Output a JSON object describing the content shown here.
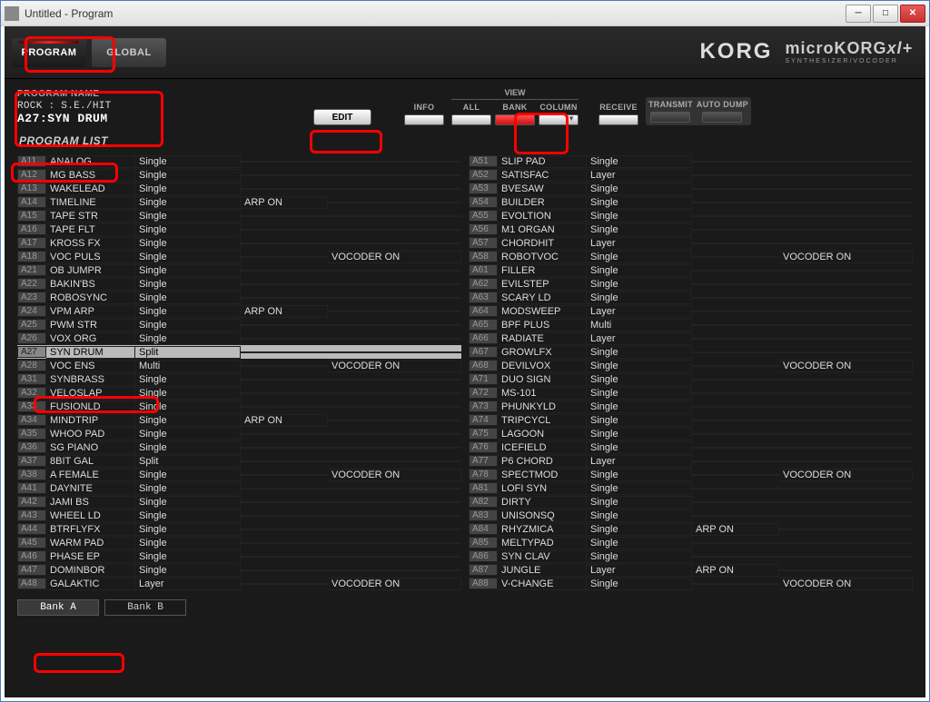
{
  "window": {
    "title": "Untitled - Program"
  },
  "modes": {
    "program": "PROGRAM",
    "global": "GLOBAL"
  },
  "brand": {
    "korg": "KORG",
    "mk": "microKORG",
    "xl": "xl+",
    "sub": "SYNTHESIZER/VOCODER"
  },
  "programName": {
    "label": "PROGRAM NAME",
    "category": "ROCK : S.E./HIT",
    "name": "A27:SYN DRUM"
  },
  "buttons": {
    "edit": "EDIT",
    "info": "INFO",
    "all": "ALL",
    "bank": "BANK",
    "column": "COLUMN",
    "receive": "RECEIVE",
    "transmit": "TRANSMIT",
    "autodump": "AUTO DUMP",
    "viewLabel": "VIEW"
  },
  "listTitle": "PROGRAM LIST",
  "bankTabs": {
    "a": "Bank A",
    "b": "Bank B"
  },
  "selectedId": "A27",
  "colLeft": [
    {
      "id": "A11",
      "name": "ANALOG",
      "type": "Single",
      "arp": "",
      "voc": ""
    },
    {
      "id": "A12",
      "name": "MG BASS",
      "type": "Single",
      "arp": "",
      "voc": ""
    },
    {
      "id": "A13",
      "name": "WAKELEAD",
      "type": "Single",
      "arp": "",
      "voc": ""
    },
    {
      "id": "A14",
      "name": "TIMELINE",
      "type": "Single",
      "arp": "ARP ON",
      "voc": ""
    },
    {
      "id": "A15",
      "name": "TAPE STR",
      "type": "Single",
      "arp": "",
      "voc": ""
    },
    {
      "id": "A16",
      "name": "TAPE FLT",
      "type": "Single",
      "arp": "",
      "voc": ""
    },
    {
      "id": "A17",
      "name": "KROSS FX",
      "type": "Single",
      "arp": "",
      "voc": ""
    },
    {
      "id": "A18",
      "name": "VOC PULS",
      "type": "Single",
      "arp": "",
      "voc": "VOCODER ON"
    },
    {
      "id": "A21",
      "name": "OB JUMPR",
      "type": "Single",
      "arp": "",
      "voc": ""
    },
    {
      "id": "A22",
      "name": "BAKIN'BS",
      "type": "Single",
      "arp": "",
      "voc": ""
    },
    {
      "id": "A23",
      "name": "ROBOSYNC",
      "type": "Single",
      "arp": "",
      "voc": ""
    },
    {
      "id": "A24",
      "name": "VPM ARP",
      "type": "Single",
      "arp": "ARP ON",
      "voc": ""
    },
    {
      "id": "A25",
      "name": "PWM STR",
      "type": "Single",
      "arp": "",
      "voc": ""
    },
    {
      "id": "A26",
      "name": "VOX ORG",
      "type": "Single",
      "arp": "",
      "voc": ""
    },
    {
      "id": "A27",
      "name": "SYN DRUM",
      "type": "Split",
      "arp": "",
      "voc": ""
    },
    {
      "id": "A28",
      "name": "VOC ENS",
      "type": "Multi",
      "arp": "",
      "voc": "VOCODER ON"
    },
    {
      "id": "A31",
      "name": "SYNBRASS",
      "type": "Single",
      "arp": "",
      "voc": ""
    },
    {
      "id": "A32",
      "name": "VELOSLAP",
      "type": "Single",
      "arp": "",
      "voc": ""
    },
    {
      "id": "A33",
      "name": "FUSIONLD",
      "type": "Single",
      "arp": "",
      "voc": ""
    },
    {
      "id": "A34",
      "name": "MINDTRIP",
      "type": "Single",
      "arp": "ARP ON",
      "voc": ""
    },
    {
      "id": "A35",
      "name": "WHOO PAD",
      "type": "Single",
      "arp": "",
      "voc": ""
    },
    {
      "id": "A36",
      "name": "SG PIANO",
      "type": "Single",
      "arp": "",
      "voc": ""
    },
    {
      "id": "A37",
      "name": "8BIT GAL",
      "type": "Split",
      "arp": "",
      "voc": ""
    },
    {
      "id": "A38",
      "name": "A FEMALE",
      "type": "Single",
      "arp": "",
      "voc": "VOCODER ON"
    },
    {
      "id": "A41",
      "name": "DAYNITE",
      "type": "Single",
      "arp": "",
      "voc": ""
    },
    {
      "id": "A42",
      "name": "JAMI BS",
      "type": "Single",
      "arp": "",
      "voc": ""
    },
    {
      "id": "A43",
      "name": "WHEEL LD",
      "type": "Single",
      "arp": "",
      "voc": ""
    },
    {
      "id": "A44",
      "name": "BTRFLYFX",
      "type": "Single",
      "arp": "",
      "voc": ""
    },
    {
      "id": "A45",
      "name": "WARM PAD",
      "type": "Single",
      "arp": "",
      "voc": ""
    },
    {
      "id": "A46",
      "name": "PHASE EP",
      "type": "Single",
      "arp": "",
      "voc": ""
    },
    {
      "id": "A47",
      "name": "DOMINBOR",
      "type": "Single",
      "arp": "",
      "voc": ""
    },
    {
      "id": "A48",
      "name": "GALAKTIC",
      "type": "Layer",
      "arp": "",
      "voc": "VOCODER ON"
    }
  ],
  "colRight": [
    {
      "id": "A51",
      "name": "SLIP PAD",
      "type": "Single",
      "arp": "",
      "voc": ""
    },
    {
      "id": "A52",
      "name": "SATISFAC",
      "type": "Layer",
      "arp": "",
      "voc": ""
    },
    {
      "id": "A53",
      "name": "BVESAW",
      "type": "Single",
      "arp": "",
      "voc": ""
    },
    {
      "id": "A54",
      "name": "BUILDER",
      "type": "Single",
      "arp": "",
      "voc": ""
    },
    {
      "id": "A55",
      "name": "EVOLTION",
      "type": "Single",
      "arp": "",
      "voc": ""
    },
    {
      "id": "A56",
      "name": "M1 ORGAN",
      "type": "Single",
      "arp": "",
      "voc": ""
    },
    {
      "id": "A57",
      "name": "CHORDHIT",
      "type": "Layer",
      "arp": "",
      "voc": ""
    },
    {
      "id": "A58",
      "name": "ROBOTVOC",
      "type": "Single",
      "arp": "",
      "voc": "VOCODER ON"
    },
    {
      "id": "A61",
      "name": "FILLER",
      "type": "Single",
      "arp": "",
      "voc": ""
    },
    {
      "id": "A62",
      "name": "EVILSTEP",
      "type": "Single",
      "arp": "",
      "voc": ""
    },
    {
      "id": "A63",
      "name": "SCARY LD",
      "type": "Single",
      "arp": "",
      "voc": ""
    },
    {
      "id": "A64",
      "name": "MODSWEEP",
      "type": "Layer",
      "arp": "",
      "voc": ""
    },
    {
      "id": "A65",
      "name": "BPF PLUS",
      "type": "Multi",
      "arp": "",
      "voc": ""
    },
    {
      "id": "A66",
      "name": "RADIATE",
      "type": "Layer",
      "arp": "",
      "voc": ""
    },
    {
      "id": "A67",
      "name": "GROWLFX",
      "type": "Single",
      "arp": "",
      "voc": ""
    },
    {
      "id": "A68",
      "name": "DEVILVOX",
      "type": "Single",
      "arp": "",
      "voc": "VOCODER ON"
    },
    {
      "id": "A71",
      "name": "DUO SIGN",
      "type": "Single",
      "arp": "",
      "voc": ""
    },
    {
      "id": "A72",
      "name": "MS-101",
      "type": "Single",
      "arp": "",
      "voc": ""
    },
    {
      "id": "A73",
      "name": "PHUNKYLD",
      "type": "Single",
      "arp": "",
      "voc": ""
    },
    {
      "id": "A74",
      "name": "TRIPCYCL",
      "type": "Single",
      "arp": "",
      "voc": ""
    },
    {
      "id": "A75",
      "name": "LAGOON",
      "type": "Single",
      "arp": "",
      "voc": ""
    },
    {
      "id": "A76",
      "name": "ICEFIELD",
      "type": "Single",
      "arp": "",
      "voc": ""
    },
    {
      "id": "A77",
      "name": "P6 CHORD",
      "type": "Layer",
      "arp": "",
      "voc": ""
    },
    {
      "id": "A78",
      "name": "SPECTMOD",
      "type": "Single",
      "arp": "",
      "voc": "VOCODER ON"
    },
    {
      "id": "A81",
      "name": "LOFI SYN",
      "type": "Single",
      "arp": "",
      "voc": ""
    },
    {
      "id": "A82",
      "name": "DIRTY",
      "type": "Single",
      "arp": "",
      "voc": ""
    },
    {
      "id": "A83",
      "name": "UNISONSQ",
      "type": "Single",
      "arp": "",
      "voc": ""
    },
    {
      "id": "A84",
      "name": "RHYZMICA",
      "type": "Single",
      "arp": "ARP ON",
      "voc": ""
    },
    {
      "id": "A85",
      "name": "MELTYPAD",
      "type": "Single",
      "arp": "",
      "voc": ""
    },
    {
      "id": "A86",
      "name": "SYN CLAV",
      "type": "Single",
      "arp": "",
      "voc": ""
    },
    {
      "id": "A87",
      "name": "JUNGLE",
      "type": "Layer",
      "arp": "ARP ON",
      "voc": ""
    },
    {
      "id": "A88",
      "name": "V-CHANGE",
      "type": "Single",
      "arp": "",
      "voc": "VOCODER ON"
    }
  ]
}
